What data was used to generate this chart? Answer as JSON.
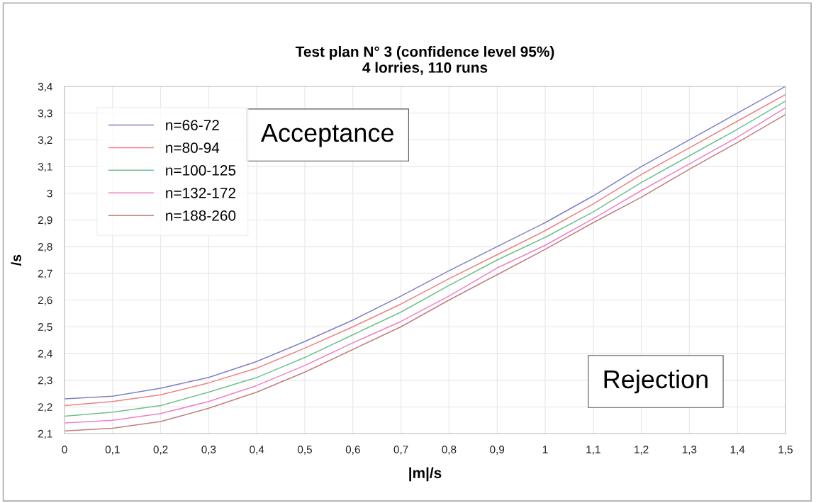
{
  "chart_data": {
    "type": "line",
    "title": "Test plan N° 3 (confidence level 95%)\n4 lorries, 110 runs",
    "xlabel": "|m|/s",
    "ylabel": "/s",
    "x": [
      0,
      0.1,
      0.2,
      0.3,
      0.4,
      0.5,
      0.6,
      0.7,
      0.8,
      0.9,
      1.0,
      1.1,
      1.2,
      1.3,
      1.4,
      1.5
    ],
    "series": [
      {
        "name": "n=66-72",
        "color": "#8080c8",
        "values": [
          2.23,
          2.24,
          2.27,
          2.31,
          2.37,
          2.445,
          2.525,
          2.615,
          2.71,
          2.8,
          2.89,
          2.99,
          3.1,
          3.2,
          3.3,
          3.4
        ]
      },
      {
        "name": "n=80-94",
        "color": "#f08080",
        "values": [
          2.205,
          2.22,
          2.245,
          2.29,
          2.345,
          2.42,
          2.5,
          2.585,
          2.68,
          2.77,
          2.86,
          2.96,
          3.07,
          3.17,
          3.27,
          3.37
        ]
      },
      {
        "name": "n=100-125",
        "color": "#70c090",
        "values": [
          2.165,
          2.18,
          2.205,
          2.255,
          2.31,
          2.385,
          2.47,
          2.555,
          2.655,
          2.75,
          2.835,
          2.93,
          3.04,
          3.14,
          3.24,
          3.345
        ]
      },
      {
        "name": "n=132-172",
        "color": "#f080c8",
        "values": [
          2.14,
          2.15,
          2.175,
          2.22,
          2.28,
          2.355,
          2.44,
          2.52,
          2.615,
          2.72,
          2.805,
          2.905,
          3.01,
          3.11,
          3.21,
          3.32
        ]
      },
      {
        "name": "n=188-260",
        "color": "#c08080",
        "values": [
          2.11,
          2.12,
          2.145,
          2.195,
          2.255,
          2.33,
          2.415,
          2.5,
          2.6,
          2.695,
          2.79,
          2.89,
          2.985,
          3.09,
          3.19,
          3.295
        ]
      }
    ],
    "xlim": [
      0,
      1.5
    ],
    "xticks": [
      0,
      {
        "value": 0.1,
        "label": "0,1"
      },
      {
        "value": 0.2,
        "label": "0,2"
      },
      {
        "value": 0.3,
        "label": "0,3"
      },
      {
        "value": 0.4,
        "label": "0,4"
      },
      {
        "value": 0.5,
        "label": "0,5"
      },
      {
        "value": 0.6,
        "label": "0,6"
      },
      {
        "value": 0.7,
        "label": "0,7"
      },
      {
        "value": 0.8,
        "label": "0,8"
      },
      {
        "value": 0.9,
        "label": "0,9"
      },
      1,
      {
        "value": 1.1,
        "label": "1,1"
      },
      {
        "value": 1.2,
        "label": "1,2"
      },
      {
        "value": 1.3,
        "label": "1,3"
      },
      {
        "value": 1.4,
        "label": "1,4"
      },
      {
        "value": 1.5,
        "label": "1,5"
      }
    ],
    "ylim": [
      2.1,
      3.4
    ],
    "yticks": [
      {
        "value": 2.1,
        "label": "2,1"
      },
      {
        "value": 2.2,
        "label": "2,2"
      },
      {
        "value": 2.3,
        "label": "2,3"
      },
      {
        "value": 2.4,
        "label": "2,4"
      },
      {
        "value": 2.5,
        "label": "2,5"
      },
      {
        "value": 2.6,
        "label": "2,6"
      },
      {
        "value": 2.7,
        "label": "2,7"
      },
      {
        "value": 2.8,
        "label": "2,8"
      },
      {
        "value": 2.9,
        "label": "2,9"
      },
      3,
      {
        "value": 3.1,
        "label": "3,1"
      },
      {
        "value": 3.2,
        "label": "3,2"
      },
      {
        "value": 3.3,
        "label": "3,3"
      },
      {
        "value": 3.4,
        "label": "3,4"
      }
    ],
    "grid": true,
    "legend": "top left",
    "marker": "none",
    "line_style": "solid",
    "annotations": [
      "Acceptance",
      "Rejection"
    ]
  }
}
